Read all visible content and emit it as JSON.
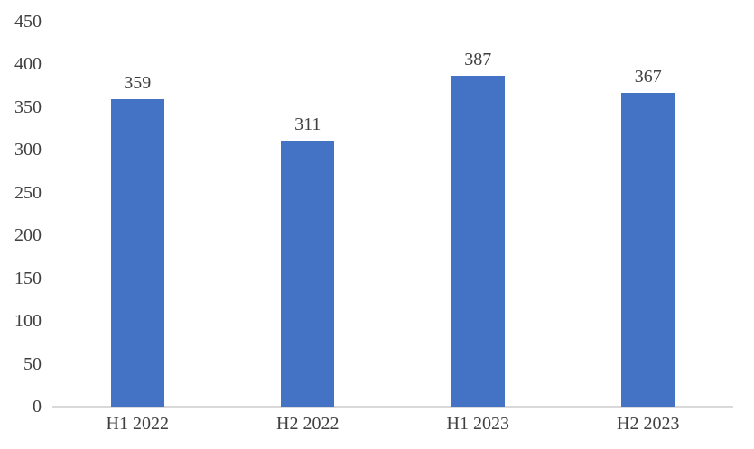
{
  "chart_data": {
    "type": "bar",
    "title": "",
    "xlabel": "",
    "ylabel": "",
    "categories": [
      "H1 2022",
      "H2 2022",
      "H1 2023",
      "H2 2023"
    ],
    "values": [
      359,
      311,
      387,
      367
    ],
    "data_labels_shown": true,
    "ylim": [
      0,
      450
    ],
    "ytick_step": 50,
    "yticks": [
      0,
      50,
      100,
      150,
      200,
      250,
      300,
      350,
      400,
      450
    ],
    "grid": false,
    "legend": false
  },
  "style": {
    "bar_color": "#4472C4",
    "axis_line_color": "#D9D9D9",
    "label_color": "#404040",
    "background_color": "#FFFFFF"
  }
}
